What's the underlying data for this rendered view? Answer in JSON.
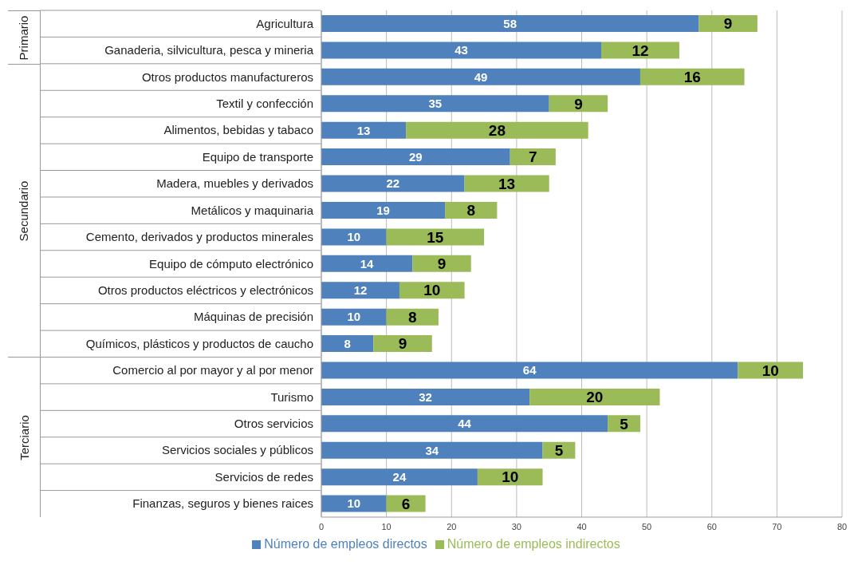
{
  "chart_data": {
    "type": "bar",
    "orientation": "horizontal",
    "stacked": true,
    "data_labels": true,
    "grid": "x",
    "legend": "bottom",
    "categories": [
      "Agricultura",
      "Ganaderia, silvicultura, pesca y mineria",
      "Otros productos manufactureros",
      "Textil y confección",
      "Alimentos, bebidas y tabaco",
      "Equipo de transporte",
      "Madera, muebles y derivados",
      "Metálicos y maquinaria",
      "Cemento, derivados y productos minerales",
      "Equipo de cómputo electrónico",
      "Otros productos eléctricos y electrónicos",
      "Máquinas de precisión",
      "Químicos, plásticos y productos de caucho",
      "Comercio al por mayor y al por menor",
      "Turismo",
      "Otros servicios",
      "Servicios sociales y públicos",
      "Servicios de redes",
      "Finanzas, seguros y bienes raices"
    ],
    "series": [
      {
        "name": "Número de empleos directos",
        "color": "#4f81bd",
        "values": [
          58,
          43,
          49,
          35,
          13,
          29,
          22,
          19,
          10,
          14,
          12,
          10,
          8,
          64,
          32,
          44,
          34,
          24,
          10
        ]
      },
      {
        "name": "Número de empleos indirectos",
        "color": "#9bbb59",
        "values": [
          9,
          12,
          16,
          9,
          28,
          7,
          13,
          8,
          15,
          9,
          10,
          8,
          9,
          10,
          20,
          5,
          5,
          10,
          6
        ]
      }
    ],
    "xlim": [
      0,
      80
    ],
    "xticks": [
      0,
      10,
      20,
      30,
      40,
      50,
      60,
      70,
      80
    ],
    "annotations": [
      "Primario",
      "Secundario",
      "Terciario"
    ]
  }
}
